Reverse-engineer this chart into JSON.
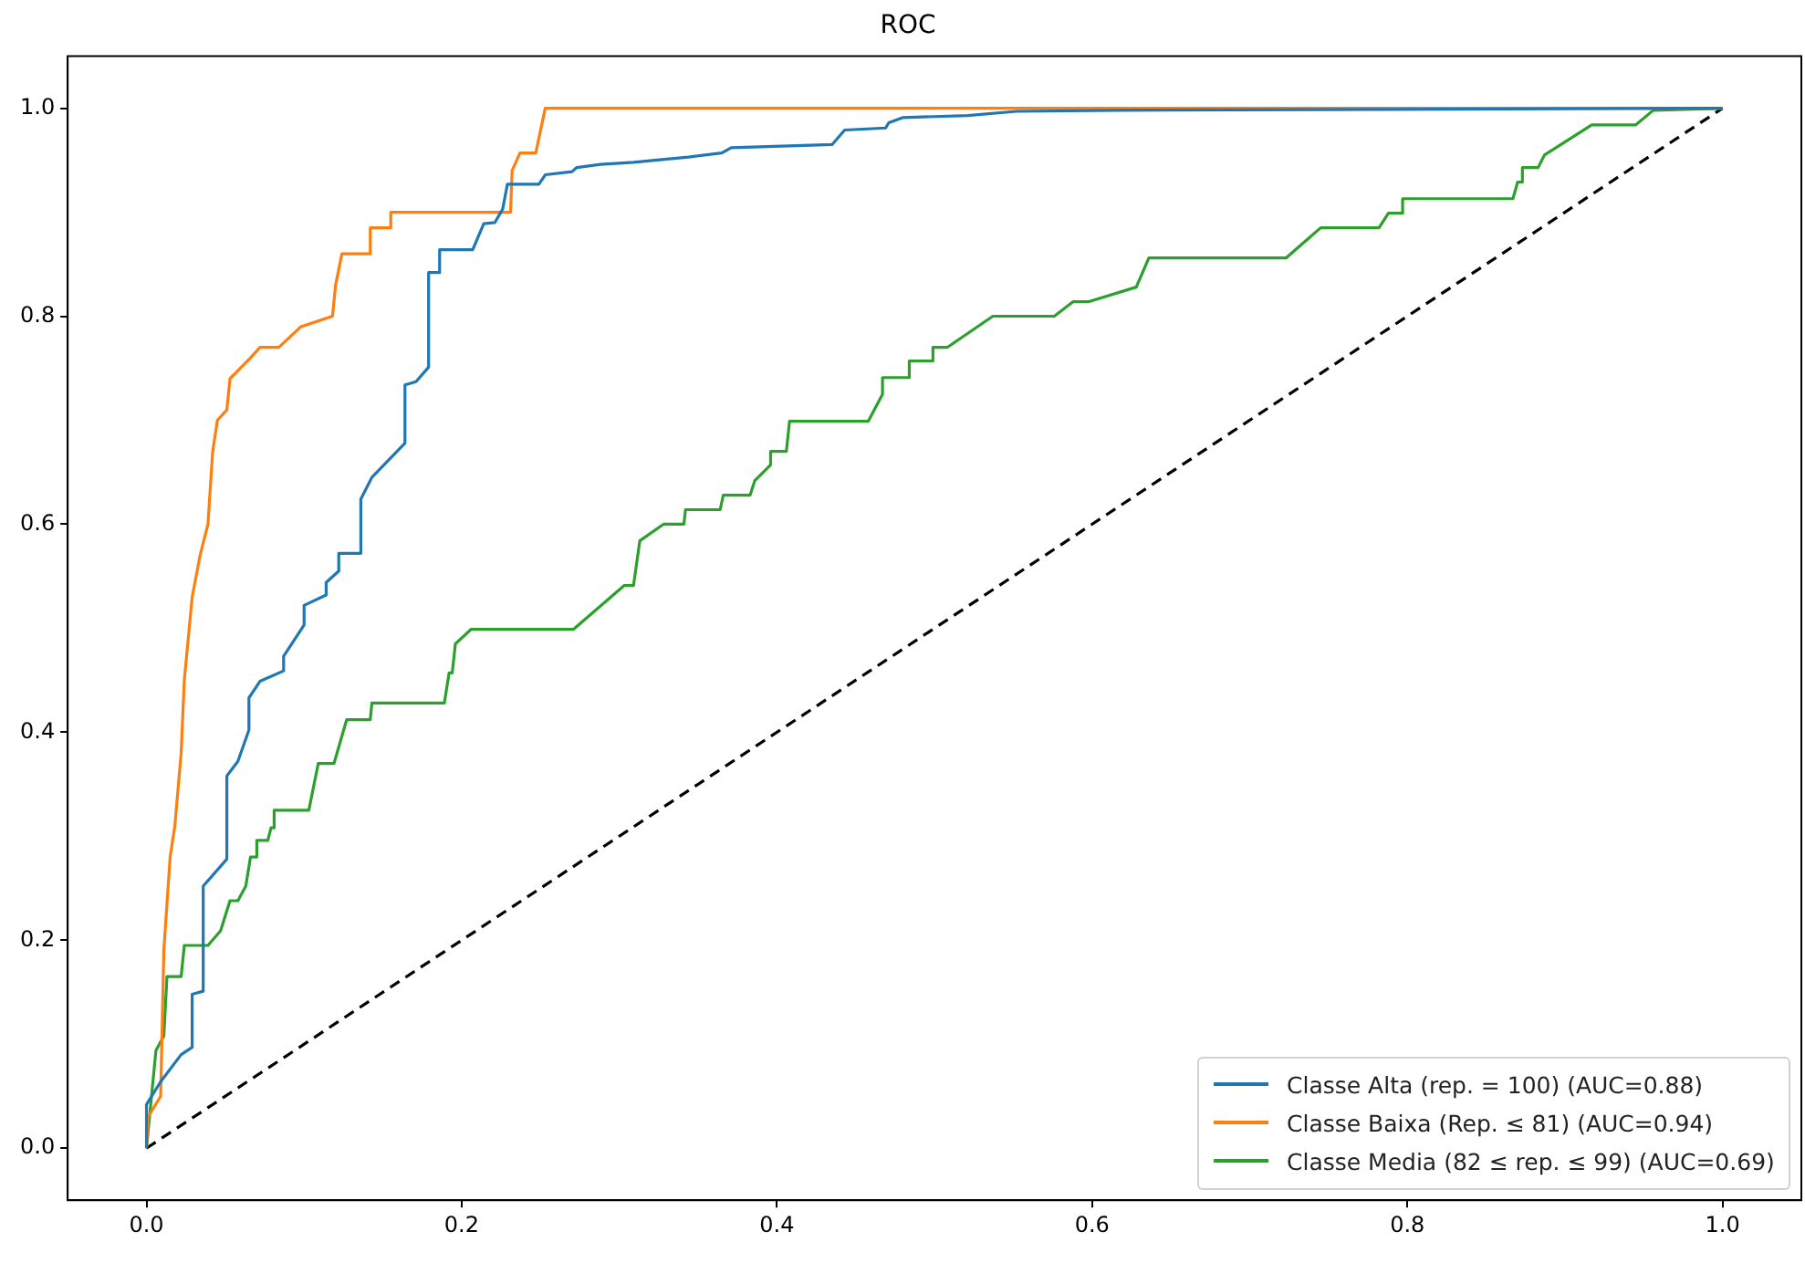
{
  "chart_data": {
    "type": "line",
    "title": "ROC",
    "xlim": [
      -0.05,
      1.05
    ],
    "ylim": [
      -0.05,
      1.05
    ],
    "xticks": [
      {
        "value": 0,
        "label": "0.0"
      },
      {
        "value": 0.2,
        "label": "0.2"
      },
      {
        "value": 0.4,
        "label": "0.4"
      },
      {
        "value": 0.6,
        "label": "0.6"
      },
      {
        "value": 0.8,
        "label": "0.8"
      },
      {
        "value": 1,
        "label": "1.0"
      }
    ],
    "yticks": [
      {
        "value": 0,
        "label": "0.0"
      },
      {
        "value": 0.2,
        "label": "0.2"
      },
      {
        "value": 0.4,
        "label": "0.4"
      },
      {
        "value": 0.6,
        "label": "0.6"
      },
      {
        "value": 0.8,
        "label": "0.8"
      },
      {
        "value": 1,
        "label": "1.0"
      }
    ],
    "legend": "bottom right",
    "marker": "none",
    "line_style": "solid",
    "series": [
      {
        "name": "Classe Alta (rep. = 100) (AUC=0.88)",
        "color": "#1f77b4",
        "x": [
          0,
          0,
          0.009,
          0.022,
          0.029,
          0.029,
          0.036,
          0.036,
          0.051,
          0.051,
          0.058,
          0.065,
          0.065,
          0.072,
          0.087,
          0.087,
          0.1,
          0.1,
          0.114,
          0.114,
          0.122,
          0.122,
          0.136,
          0.136,
          0.143,
          0.164,
          0.164,
          0.171,
          0.179,
          0.179,
          0.186,
          0.186,
          0.207,
          0.214,
          0.221,
          0.226,
          0.229,
          0.249,
          0.253,
          0.27,
          0.273,
          0.288,
          0.309,
          0.33,
          0.344,
          0.365,
          0.371,
          0.435,
          0.443,
          0.469,
          0.471,
          0.48,
          0.521,
          0.552,
          0.617,
          1
        ],
        "values": [
          0,
          0.042,
          0.064,
          0.09,
          0.097,
          0.148,
          0.151,
          0.252,
          0.278,
          0.358,
          0.372,
          0.402,
          0.433,
          0.449,
          0.459,
          0.473,
          0.503,
          0.522,
          0.532,
          0.544,
          0.555,
          0.572,
          0.572,
          0.624,
          0.645,
          0.678,
          0.734,
          0.737,
          0.751,
          0.842,
          0.842,
          0.864,
          0.864,
          0.889,
          0.89,
          0.903,
          0.927,
          0.927,
          0.936,
          0.939,
          0.943,
          0.946,
          0.948,
          0.951,
          0.953,
          0.957,
          0.962,
          0.965,
          0.979,
          0.981,
          0.986,
          0.991,
          0.993,
          0.997,
          0.998,
          1
        ]
      },
      {
        "name": "Classe Baixa (Rep. ≤ 81) (AUC=0.94)",
        "color": "#ff7f0e",
        "x": [
          0,
          0.001,
          0.009,
          0.011,
          0.015,
          0.018,
          0.022,
          0.024,
          0.029,
          0.034,
          0.039,
          0.042,
          0.045,
          0.051,
          0.053,
          0.066,
          0.072,
          0.084,
          0.098,
          0.118,
          0.12,
          0.124,
          0.142,
          0.142,
          0.155,
          0.155,
          0.231,
          0.232,
          0.237,
          0.247,
          0.253,
          1
        ],
        "values": [
          0,
          0.03,
          0.05,
          0.19,
          0.28,
          0.31,
          0.38,
          0.45,
          0.53,
          0.57,
          0.6,
          0.67,
          0.7,
          0.71,
          0.74,
          0.76,
          0.77,
          0.77,
          0.79,
          0.8,
          0.83,
          0.86,
          0.86,
          0.885,
          0.885,
          0.9,
          0.9,
          0.94,
          0.957,
          0.957,
          1,
          1
        ]
      },
      {
        "name": "Classe Media (82 ≤ rep. ≤ 99) (AUC=0.69)",
        "color": "#2ca02c",
        "x": [
          0,
          0.006,
          0.011,
          0.013,
          0.022,
          0.024,
          0.039,
          0.047,
          0.053,
          0.058,
          0.063,
          0.066,
          0.07,
          0.07,
          0.077,
          0.079,
          0.081,
          0.081,
          0.103,
          0.109,
          0.119,
          0.127,
          0.142,
          0.143,
          0.189,
          0.192,
          0.194,
          0.196,
          0.206,
          0.271,
          0.303,
          0.309,
          0.313,
          0.328,
          0.341,
          0.342,
          0.364,
          0.366,
          0.383,
          0.386,
          0.396,
          0.396,
          0.406,
          0.408,
          0.458,
          0.467,
          0.467,
          0.484,
          0.484,
          0.499,
          0.499,
          0.508,
          0.537,
          0.576,
          0.588,
          0.598,
          0.628,
          0.636,
          0.723,
          0.745,
          0.782,
          0.788,
          0.797,
          0.797,
          0.867,
          0.87,
          0.873,
          0.873,
          0.883,
          0.887,
          0.917,
          0.945,
          0.956,
          1
        ],
        "values": [
          0,
          0.094,
          0.108,
          0.165,
          0.165,
          0.195,
          0.195,
          0.209,
          0.238,
          0.238,
          0.252,
          0.28,
          0.28,
          0.296,
          0.296,
          0.308,
          0.308,
          0.325,
          0.325,
          0.37,
          0.37,
          0.412,
          0.412,
          0.428,
          0.428,
          0.457,
          0.457,
          0.485,
          0.499,
          0.499,
          0.541,
          0.541,
          0.584,
          0.6,
          0.6,
          0.614,
          0.614,
          0.628,
          0.628,
          0.642,
          0.657,
          0.67,
          0.67,
          0.699,
          0.699,
          0.725,
          0.741,
          0.741,
          0.757,
          0.757,
          0.77,
          0.77,
          0.8,
          0.8,
          0.814,
          0.814,
          0.828,
          0.856,
          0.856,
          0.885,
          0.885,
          0.899,
          0.899,
          0.913,
          0.913,
          0.929,
          0.929,
          0.943,
          0.943,
          0.955,
          0.984,
          0.984,
          0.998,
          1
        ]
      },
      {
        "color": "#000000",
        "line_style": "dashed",
        "x": [
          0,
          1
        ],
        "values": [
          0,
          1
        ]
      }
    ]
  }
}
